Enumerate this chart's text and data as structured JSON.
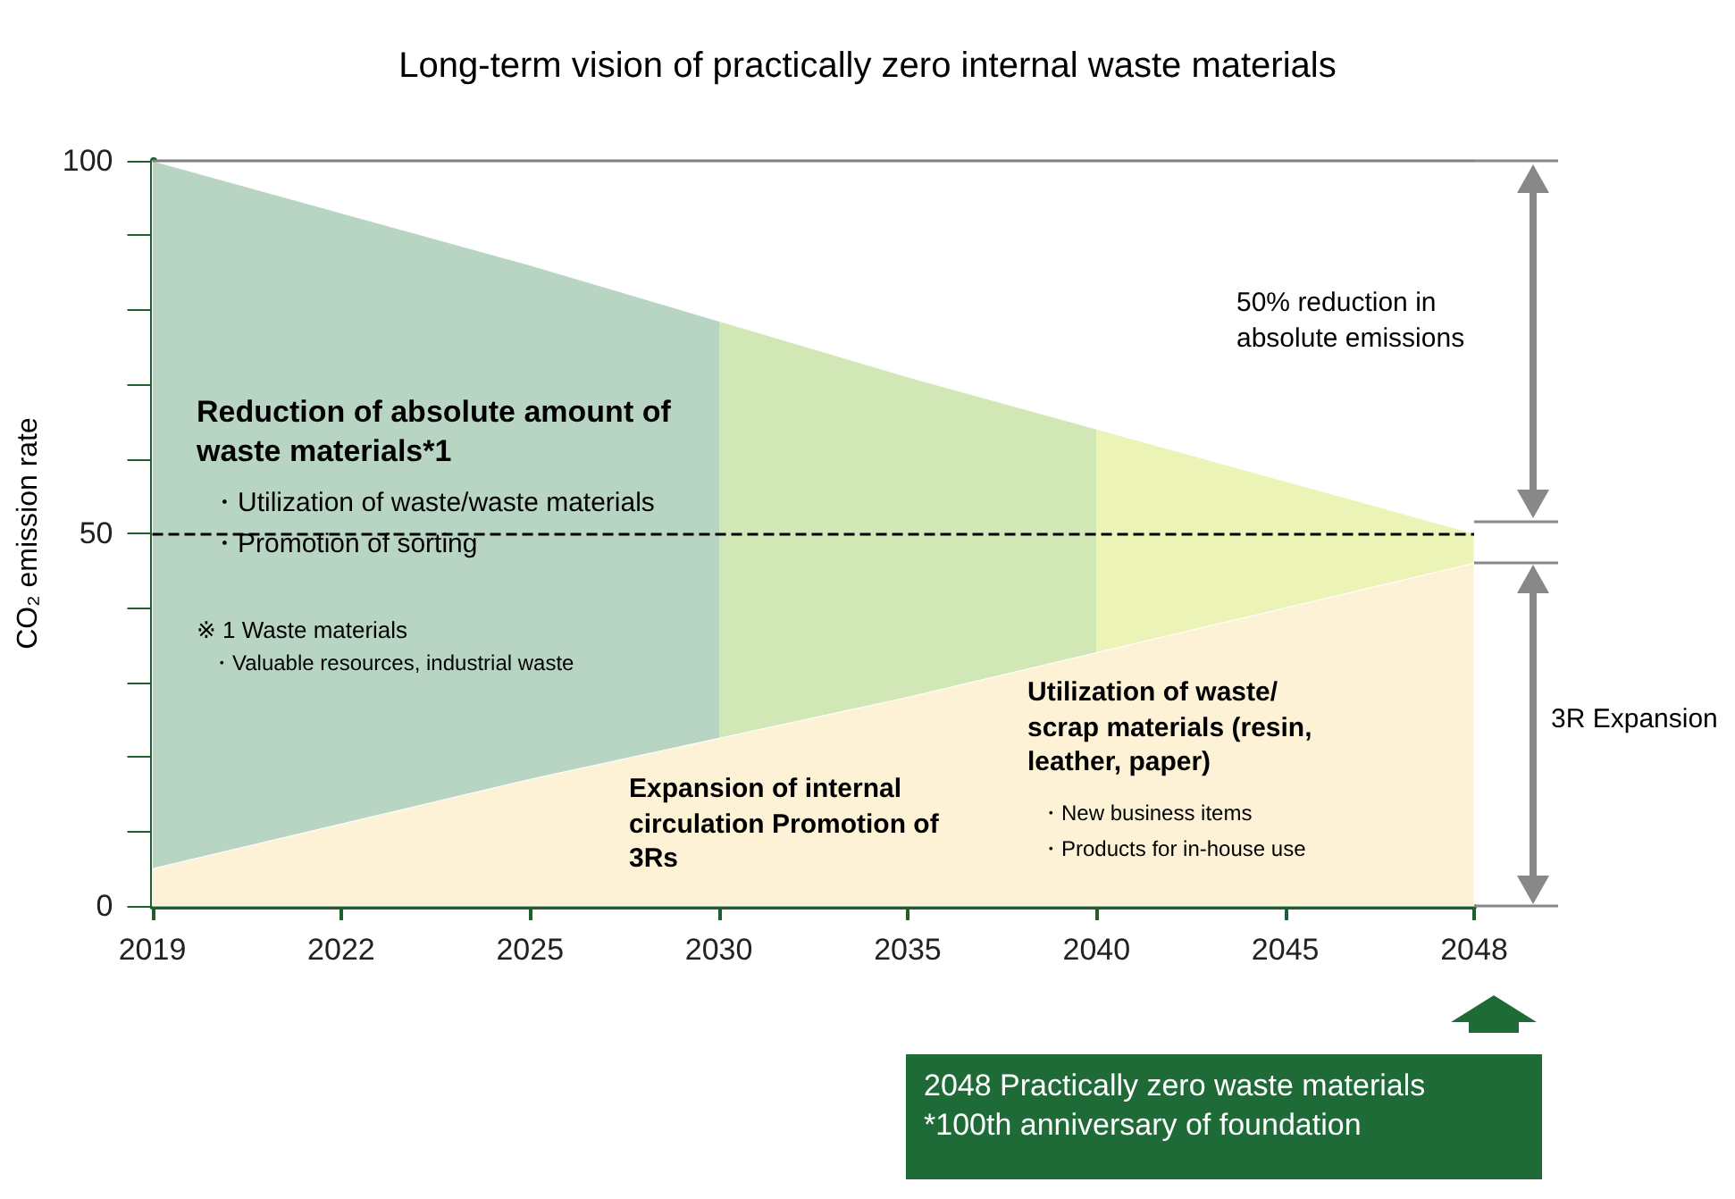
{
  "chart_data": {
    "type": "area",
    "title": "Long-term vision of practically zero internal waste materials",
    "ylabel": "CO₂ emission rate",
    "categories": [
      "2019",
      "2022",
      "2025",
      "2030",
      "2035",
      "2040",
      "2045",
      "2048"
    ],
    "stacked": true,
    "series": [
      {
        "color": "#fdf2d6",
        "values": [
          5,
          11,
          17,
          22.5,
          28,
          34,
          40,
          46
        ]
      },
      {
        "colors": [
          "#b8d5c3",
          "#b8d5c3",
          "#b8d5c3",
          "#d2e7b6",
          "#d2e7b6",
          "#ebf4b6",
          "#ebf4b6",
          "#ebf4b6"
        ],
        "values": [
          95,
          82,
          69,
          56,
          43,
          30,
          17,
          4
        ]
      }
    ],
    "ylim": [
      0,
      100
    ],
    "yticks": [
      0,
      {
        "value": 10,
        "label": null
      },
      {
        "value": 20,
        "label": null
      },
      {
        "value": 30,
        "label": null
      },
      {
        "value": 40,
        "label": null
      },
      50,
      {
        "value": 60,
        "label": null
      },
      {
        "value": 70,
        "label": null
      },
      {
        "value": 80,
        "label": null
      },
      {
        "value": 90,
        "label": null
      },
      100
    ],
    "ref_lines": [
      {
        "axis": "y",
        "value": 50,
        "color": "#000000",
        "line_style": "dashed"
      },
      {
        "axis": "y",
        "value": 100,
        "color": "#808080",
        "line_style": "solid"
      }
    ],
    "annotations": [
      "Reduction of absolute amount of waste materials*1",
      "・Utilization of waste/waste materials",
      "・Promotion of sorting",
      "※ 1 Waste materials",
      "・Valuable resources, industrial waste",
      "Expansion of internal circulation Promotion of 3Rs",
      "Utilization of waste/ scrap materials (resin, leather, paper)",
      "・New business items",
      "・Products for in-house use",
      "50% reduction in absolute emissions",
      "3R Expansion",
      "2048 Practically zero waste materials *100th anniversary of foundation"
    ],
    "grid": false
  }
}
